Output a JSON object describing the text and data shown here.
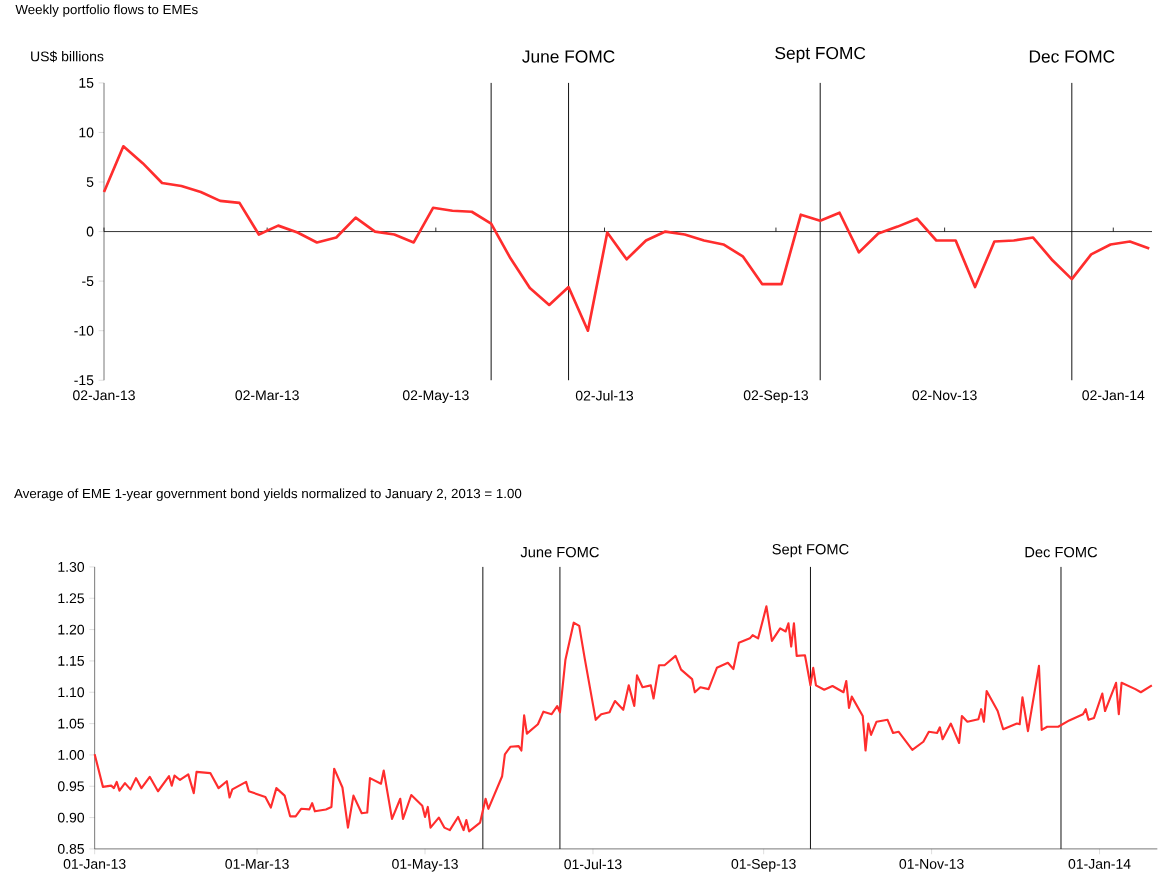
{
  "chart_data": [
    {
      "type": "line",
      "title": "Weekly portfolio flows to EMEs",
      "ylabel": "US$ billions",
      "color": "#ff2d2d",
      "x": [
        "2013-01-02",
        "2013-01-09",
        "2013-01-16",
        "2013-01-23",
        "2013-01-30",
        "2013-02-06",
        "2013-02-13",
        "2013-02-20",
        "2013-02-27",
        "2013-03-06",
        "2013-03-13",
        "2013-03-20",
        "2013-03-27",
        "2013-04-03",
        "2013-04-10",
        "2013-04-17",
        "2013-04-24",
        "2013-05-01",
        "2013-05-08",
        "2013-05-15",
        "2013-05-22",
        "2013-05-29",
        "2013-06-05",
        "2013-06-12",
        "2013-06-19",
        "2013-06-26",
        "2013-07-03",
        "2013-07-10",
        "2013-07-17",
        "2013-07-24",
        "2013-07-31",
        "2013-08-07",
        "2013-08-14",
        "2013-08-21",
        "2013-08-28",
        "2013-09-04",
        "2013-09-11",
        "2013-09-18",
        "2013-09-25",
        "2013-10-02",
        "2013-10-09",
        "2013-10-16",
        "2013-10-23",
        "2013-10-30",
        "2013-11-06",
        "2013-11-13",
        "2013-11-20",
        "2013-11-27",
        "2013-12-04",
        "2013-12-11",
        "2013-12-18",
        "2013-12-25",
        "2014-01-01",
        "2014-01-08",
        "2014-01-15"
      ],
      "values": [
        4.0,
        8.6,
        6.9,
        4.9,
        4.6,
        4.0,
        3.1,
        2.9,
        -0.3,
        0.6,
        -0.1,
        -1.1,
        -0.6,
        1.4,
        0.0,
        -0.3,
        -1.1,
        2.4,
        2.1,
        2.0,
        0.8,
        -2.7,
        -5.7,
        -7.4,
        -5.6,
        -10.0,
        -0.1,
        -2.8,
        -0.9,
        0.0,
        -0.3,
        -0.9,
        -1.3,
        -2.5,
        -5.3,
        -5.3,
        1.7,
        1.1,
        1.9,
        -2.1,
        -0.2,
        0.5,
        1.3,
        -0.9,
        -0.9,
        -5.6,
        -1.0,
        -0.9,
        -0.6,
        -2.9,
        -4.8,
        -2.3,
        -1.3,
        -1.0,
        -1.7
      ],
      "xlim": [
        "2013-01-02",
        "2014-01-16"
      ],
      "ylim": [
        -15,
        15
      ],
      "xticks": [
        {
          "value": "2013-01-02",
          "label": "02-Jan-13"
        },
        {
          "value": "2013-03-02",
          "label": "02-Mar-13"
        },
        {
          "value": "2013-05-02",
          "label": "02-May-13"
        },
        {
          "value": "2013-07-02",
          "label": "02-Jul-13"
        },
        {
          "value": "2013-09-02",
          "label": "02-Sep-13"
        },
        {
          "value": "2013-11-02",
          "label": "02-Nov-13"
        },
        {
          "value": "2014-01-02",
          "label": "02-Jan-14"
        }
      ],
      "yticks": [
        -15,
        -10,
        -5,
        0,
        5,
        10,
        15
      ],
      "ref_lines": [
        {
          "axis": "x",
          "value": "2013-05-22"
        },
        {
          "axis": "x",
          "value": "2013-06-19",
          "label": "June FOMC"
        },
        {
          "axis": "x",
          "value": "2013-09-18",
          "label": "Sept FOMC"
        },
        {
          "axis": "x",
          "value": "2013-12-18",
          "label": "Dec FOMC"
        }
      ]
    },
    {
      "type": "line",
      "title": "Average of EME 1-year government bond yields normalized to January 2, 2013 = 1.00",
      "color": "#ff2d2d",
      "x": [
        "2013-01-01",
        "2013-01-04",
        "2013-01-07",
        "2013-01-08",
        "2013-01-09",
        "2013-01-10",
        "2013-01-12",
        "2013-01-14",
        "2013-01-16",
        "2013-01-18",
        "2013-01-21",
        "2013-01-24",
        "2013-01-28",
        "2013-01-29",
        "2013-01-30",
        "2013-02-01",
        "2013-02-04",
        "2013-02-06",
        "2013-02-07",
        "2013-02-12",
        "2013-02-15",
        "2013-02-18",
        "2013-02-19",
        "2013-02-20",
        "2013-02-25",
        "2013-02-26",
        "2013-03-04",
        "2013-03-06",
        "2013-03-08",
        "2013-03-11",
        "2013-03-13",
        "2013-03-15",
        "2013-03-17",
        "2013-03-20",
        "2013-03-21",
        "2013-03-22",
        "2013-03-26",
        "2013-03-28",
        "2013-03-29",
        "2013-04-01",
        "2013-04-03",
        "2013-04-05",
        "2013-04-08",
        "2013-04-10",
        "2013-04-11",
        "2013-04-15",
        "2013-04-16",
        "2013-04-19",
        "2013-04-22",
        "2013-04-23",
        "2013-04-26",
        "2013-04-30",
        "2013-05-01",
        "2013-05-02",
        "2013-05-03",
        "2013-05-06",
        "2013-05-08",
        "2013-05-10",
        "2013-05-13",
        "2013-05-15",
        "2013-05-16",
        "2013-05-17",
        "2013-05-21",
        "2013-05-23",
        "2013-05-24",
        "2013-05-29",
        "2013-05-30",
        "2013-06-01",
        "2013-06-04",
        "2013-06-05",
        "2013-06-06",
        "2013-06-07",
        "2013-06-11",
        "2013-06-13",
        "2013-06-16",
        "2013-06-18",
        "2013-06-19",
        "2013-06-21",
        "2013-06-24",
        "2013-06-26",
        "2013-06-28",
        "2013-07-02",
        "2013-07-04",
        "2013-07-07",
        "2013-07-09",
        "2013-07-12",
        "2013-07-14",
        "2013-07-16",
        "2013-07-17",
        "2013-07-19",
        "2013-07-22",
        "2013-07-23",
        "2013-07-25",
        "2013-07-27",
        "2013-07-31",
        "2013-08-02",
        "2013-08-06",
        "2013-08-07",
        "2013-08-09",
        "2013-08-12",
        "2013-08-15",
        "2013-08-19",
        "2013-08-21",
        "2013-08-23",
        "2013-08-27",
        "2013-08-28",
        "2013-08-30",
        "2013-09-02",
        "2013-09-04",
        "2013-09-07",
        "2013-09-09",
        "2013-09-10",
        "2013-09-11",
        "2013-09-12",
        "2013-09-13",
        "2013-09-16",
        "2013-09-18",
        "2013-09-19",
        "2013-09-20",
        "2013-09-23",
        "2013-09-26",
        "2013-09-30",
        "2013-10-01",
        "2013-10-02",
        "2013-10-03",
        "2013-10-07",
        "2013-10-08",
        "2013-10-09",
        "2013-10-10",
        "2013-10-12",
        "2013-10-16",
        "2013-10-18",
        "2013-10-20",
        "2013-10-25",
        "2013-10-29",
        "2013-10-31",
        "2013-11-03",
        "2013-11-04",
        "2013-11-05",
        "2013-11-08",
        "2013-11-11",
        "2013-11-12",
        "2013-11-14",
        "2013-11-18",
        "2013-11-19",
        "2013-11-20",
        "2013-11-21",
        "2013-11-25",
        "2013-11-27",
        "2013-12-02",
        "2013-12-03",
        "2013-12-04",
        "2013-12-06",
        "2013-12-10",
        "2013-12-11",
        "2013-12-13",
        "2013-12-17",
        "2013-12-21",
        "2013-12-26",
        "2013-12-27",
        "2013-12-28",
        "2013-12-30",
        "2014-01-02",
        "2014-01-03",
        "2014-01-07",
        "2014-01-08",
        "2014-01-09",
        "2014-01-14",
        "2014-01-16",
        "2014-01-20"
      ],
      "values": [
        1.001,
        0.949,
        0.951,
        0.947,
        0.957,
        0.943,
        0.955,
        0.945,
        0.963,
        0.947,
        0.965,
        0.942,
        0.966,
        0.951,
        0.967,
        0.96,
        0.969,
        0.939,
        0.973,
        0.971,
        0.947,
        0.958,
        0.932,
        0.945,
        0.957,
        0.942,
        0.933,
        0.916,
        0.947,
        0.935,
        0.902,
        0.902,
        0.914,
        0.913,
        0.923,
        0.91,
        0.913,
        0.917,
        0.978,
        0.948,
        0.884,
        0.935,
        0.907,
        0.908,
        0.963,
        0.954,
        0.975,
        0.898,
        0.93,
        0.898,
        0.936,
        0.919,
        0.901,
        0.917,
        0.884,
        0.9,
        0.884,
        0.88,
        0.901,
        0.88,
        0.896,
        0.878,
        0.892,
        0.93,
        0.914,
        0.966,
        1.001,
        1.013,
        1.014,
        1.007,
        1.063,
        1.034,
        1.049,
        1.069,
        1.065,
        1.078,
        1.068,
        1.152,
        1.211,
        1.206,
        1.154,
        1.056,
        1.065,
        1.068,
        1.086,
        1.072,
        1.111,
        1.078,
        1.127,
        1.108,
        1.111,
        1.09,
        1.143,
        1.143,
        1.158,
        1.136,
        1.121,
        1.1,
        1.108,
        1.105,
        1.139,
        1.147,
        1.137,
        1.179,
        1.186,
        1.191,
        1.186,
        1.237,
        1.182,
        1.202,
        1.197,
        1.21,
        1.173,
        1.21,
        1.158,
        1.159,
        1.111,
        1.139,
        1.111,
        1.104,
        1.11,
        1.1,
        1.118,
        1.075,
        1.093,
        1.062,
        1.007,
        1.05,
        1.032,
        1.053,
        1.056,
        1.035,
        1.037,
        1.008,
        1.021,
        1.037,
        1.035,
        1.044,
        1.025,
        1.05,
        1.019,
        1.062,
        1.053,
        1.057,
        1.073,
        1.053,
        1.102,
        1.07,
        1.041,
        1.05,
        1.049,
        1.092,
        1.038,
        1.142,
        1.04,
        1.045,
        1.045,
        1.055,
        1.065,
        1.073,
        1.056,
        1.059,
        1.098,
        1.07,
        1.115,
        1.065,
        1.115,
        1.105,
        1.1,
        1.111
      ],
      "xlim": [
        "2013-01-01",
        "2014-01-22"
      ],
      "ylim": [
        0.85,
        1.3
      ],
      "xticks": [
        {
          "value": "2013-01-01",
          "label": "01-Jan-13"
        },
        {
          "value": "2013-03-01",
          "label": "01-Mar-13"
        },
        {
          "value": "2013-05-01",
          "label": "01-May-13"
        },
        {
          "value": "2013-07-01",
          "label": "01-Jul-13"
        },
        {
          "value": "2013-09-01",
          "label": "01-Sep-13"
        },
        {
          "value": "2013-11-01",
          "label": "01-Nov-13"
        },
        {
          "value": "2014-01-01",
          "label": "01-Jan-14"
        }
      ],
      "yticks": [
        {
          "value": 0.85,
          "label": "0.85"
        },
        {
          "value": 0.9,
          "label": "0.90"
        },
        {
          "value": 0.95,
          "label": "0.95"
        },
        {
          "value": 1.0,
          "label": "1.00"
        },
        {
          "value": 1.05,
          "label": "1.05"
        },
        {
          "value": 1.1,
          "label": "1.10"
        },
        {
          "value": 1.15,
          "label": "1.15"
        },
        {
          "value": 1.2,
          "label": "1.20"
        },
        {
          "value": 1.25,
          "label": "1.25"
        },
        {
          "value": 1.3,
          "label": "1.30"
        }
      ],
      "ref_lines": [
        {
          "axis": "x",
          "value": "2013-05-22"
        },
        {
          "axis": "x",
          "value": "2013-06-19",
          "label": "June FOMC"
        },
        {
          "axis": "x",
          "value": "2013-09-18",
          "label": "Sept FOMC"
        },
        {
          "axis": "x",
          "value": "2013-12-18",
          "label": "Dec FOMC"
        }
      ]
    }
  ]
}
